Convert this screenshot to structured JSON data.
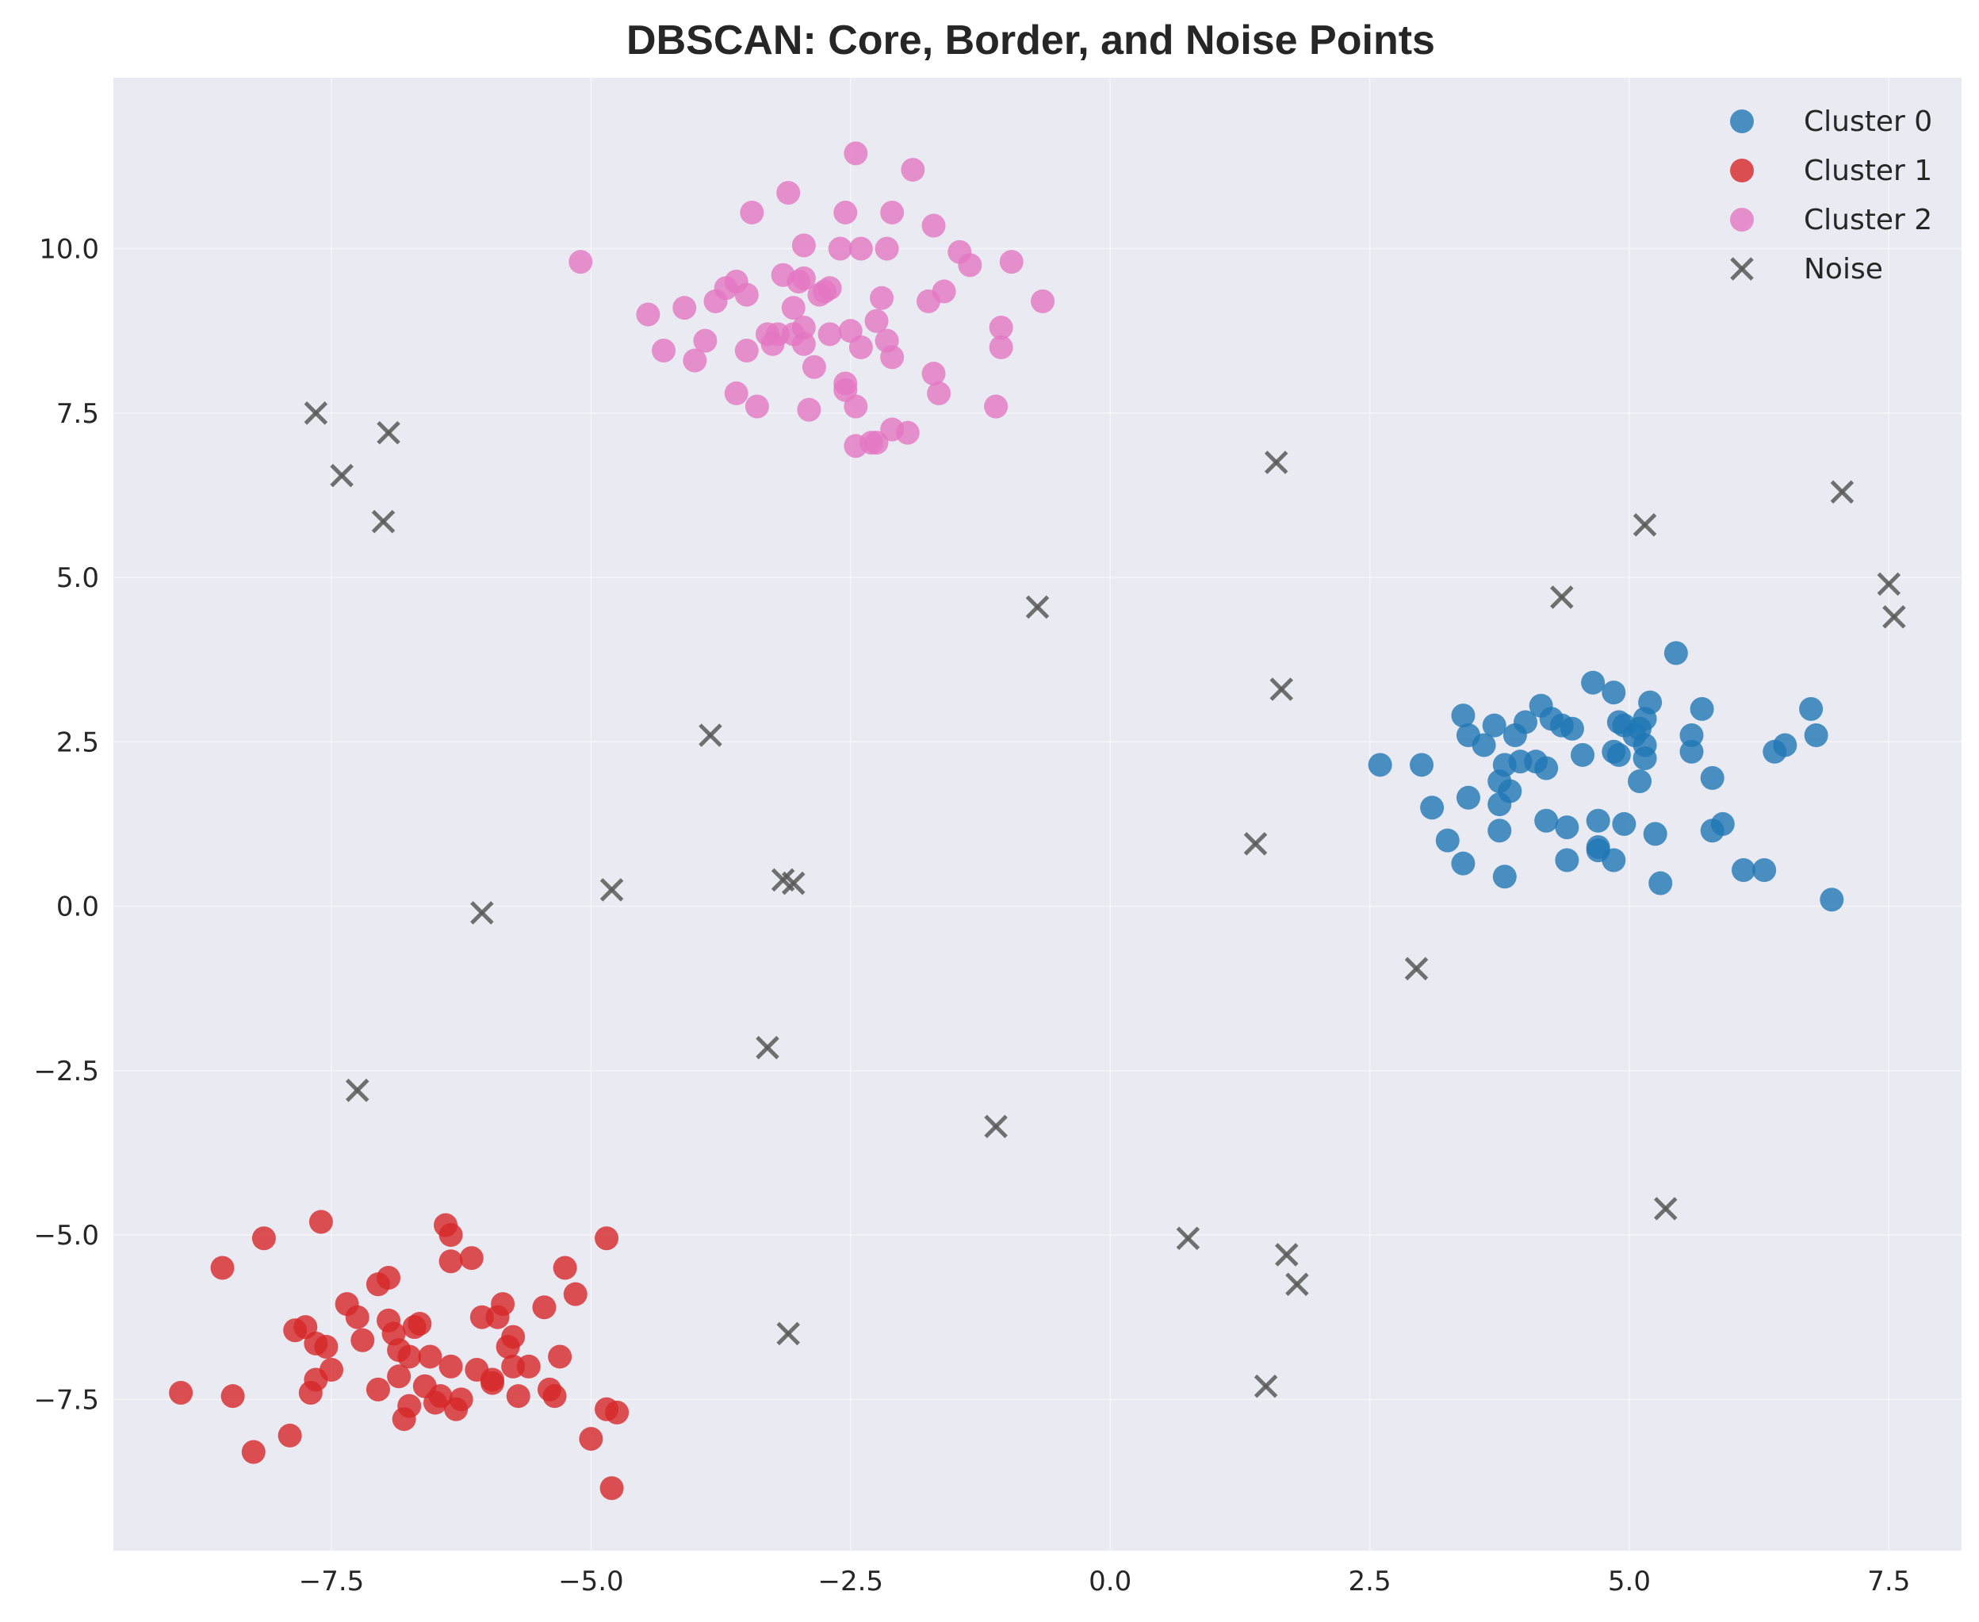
{
  "chart_data": {
    "type": "scatter",
    "title": "DBSCAN: Core, Border, and Noise Points",
    "xlabel": "",
    "ylabel": "",
    "xlim": [
      -9.6,
      8.2
    ],
    "ylim": [
      -9.8,
      12.6
    ],
    "xticks": [
      -7.5,
      -5.0,
      -2.5,
      0.0,
      2.5,
      5.0,
      7.5
    ],
    "xtick_labels": [
      "−7.5",
      "−5.0",
      "−2.5",
      "0.0",
      "2.5",
      "5.0",
      "7.5"
    ],
    "yticks": [
      -7.5,
      -5.0,
      -2.5,
      0.0,
      2.5,
      5.0,
      7.5,
      10.0
    ],
    "ytick_labels": [
      "−7.5",
      "−5.0",
      "−2.5",
      "0.0",
      "2.5",
      "5.0",
      "7.5",
      "10.0"
    ],
    "grid": true,
    "legend_position": "top-right",
    "background_color": "#eaeaf2",
    "series": [
      {
        "name": "Cluster 0",
        "marker": "circle",
        "color": "#1f77b4",
        "points": [
          [
            2.6,
            2.15
          ],
          [
            3.0,
            2.15
          ],
          [
            3.1,
            1.5
          ],
          [
            3.25,
            1.0
          ],
          [
            3.4,
            2.9
          ],
          [
            3.45,
            2.6
          ],
          [
            3.45,
            1.65
          ],
          [
            3.4,
            0.65
          ],
          [
            3.6,
            2.45
          ],
          [
            3.7,
            2.75
          ],
          [
            3.75,
            1.9
          ],
          [
            3.75,
            1.55
          ],
          [
            3.75,
            1.15
          ],
          [
            3.8,
            0.45
          ],
          [
            3.8,
            2.15
          ],
          [
            3.85,
            1.75
          ],
          [
            3.9,
            2.6
          ],
          [
            3.95,
            2.2
          ],
          [
            4.0,
            2.8
          ],
          [
            4.1,
            2.2
          ],
          [
            4.15,
            3.05
          ],
          [
            4.2,
            2.1
          ],
          [
            4.2,
            1.3
          ],
          [
            4.25,
            2.85
          ],
          [
            4.35,
            2.75
          ],
          [
            4.4,
            1.2
          ],
          [
            4.4,
            0.7
          ],
          [
            4.45,
            2.7
          ],
          [
            4.55,
            2.3
          ],
          [
            4.65,
            3.4
          ],
          [
            4.7,
            1.3
          ],
          [
            4.7,
            0.9
          ],
          [
            4.7,
            0.85
          ],
          [
            4.85,
            3.25
          ],
          [
            4.85,
            2.35
          ],
          [
            4.85,
            0.7
          ],
          [
            4.9,
            2.8
          ],
          [
            4.9,
            2.3
          ],
          [
            4.95,
            2.75
          ],
          [
            4.95,
            1.25
          ],
          [
            5.05,
            2.6
          ],
          [
            5.1,
            2.7
          ],
          [
            5.1,
            1.9
          ],
          [
            5.15,
            2.85
          ],
          [
            5.15,
            2.45
          ],
          [
            5.15,
            2.25
          ],
          [
            5.2,
            3.1
          ],
          [
            5.25,
            1.1
          ],
          [
            5.3,
            0.35
          ],
          [
            5.45,
            3.85
          ],
          [
            5.6,
            2.6
          ],
          [
            5.6,
            2.35
          ],
          [
            5.7,
            3.0
          ],
          [
            5.8,
            1.95
          ],
          [
            5.8,
            1.15
          ],
          [
            5.9,
            1.25
          ],
          [
            6.1,
            0.55
          ],
          [
            6.3,
            0.55
          ],
          [
            6.4,
            2.35
          ],
          [
            6.5,
            2.45
          ],
          [
            6.75,
            3.0
          ],
          [
            6.8,
            2.6
          ],
          [
            6.95,
            0.1
          ]
        ]
      },
      {
        "name": "Cluster 1",
        "marker": "circle",
        "color": "#d62728",
        "points": [
          [
            -8.95,
            -7.4
          ],
          [
            -8.55,
            -5.5
          ],
          [
            -8.45,
            -7.45
          ],
          [
            -8.25,
            -8.3
          ],
          [
            -8.15,
            -5.05
          ],
          [
            -7.9,
            -8.05
          ],
          [
            -7.85,
            -6.45
          ],
          [
            -7.75,
            -6.4
          ],
          [
            -7.7,
            -7.4
          ],
          [
            -7.65,
            -7.2
          ],
          [
            -7.65,
            -6.65
          ],
          [
            -7.6,
            -4.8
          ],
          [
            -7.55,
            -6.7
          ],
          [
            -7.5,
            -7.05
          ],
          [
            -7.35,
            -6.05
          ],
          [
            -7.25,
            -6.25
          ],
          [
            -7.2,
            -6.6
          ],
          [
            -7.05,
            -5.75
          ],
          [
            -7.05,
            -7.35
          ],
          [
            -6.95,
            -5.65
          ],
          [
            -6.95,
            -6.3
          ],
          [
            -6.9,
            -6.5
          ],
          [
            -6.85,
            -7.15
          ],
          [
            -6.85,
            -6.75
          ],
          [
            -6.8,
            -7.8
          ],
          [
            -6.75,
            -6.85
          ],
          [
            -6.75,
            -7.6
          ],
          [
            -6.7,
            -6.4
          ],
          [
            -6.65,
            -6.35
          ],
          [
            -6.6,
            -7.3
          ],
          [
            -6.55,
            -6.85
          ],
          [
            -6.5,
            -7.55
          ],
          [
            -6.45,
            -7.45
          ],
          [
            -6.4,
            -4.85
          ],
          [
            -6.35,
            -5.0
          ],
          [
            -6.35,
            -5.4
          ],
          [
            -6.35,
            -7.0
          ],
          [
            -6.3,
            -7.65
          ],
          [
            -6.25,
            -7.5
          ],
          [
            -6.15,
            -5.35
          ],
          [
            -6.1,
            -7.05
          ],
          [
            -6.05,
            -6.25
          ],
          [
            -5.95,
            -7.2
          ],
          [
            -5.95,
            -7.25
          ],
          [
            -5.9,
            -6.25
          ],
          [
            -5.85,
            -6.05
          ],
          [
            -5.8,
            -6.7
          ],
          [
            -5.75,
            -6.55
          ],
          [
            -5.75,
            -7.0
          ],
          [
            -5.7,
            -7.45
          ],
          [
            -5.6,
            -7.0
          ],
          [
            -5.45,
            -6.1
          ],
          [
            -5.4,
            -7.35
          ],
          [
            -5.35,
            -7.45
          ],
          [
            -5.3,
            -6.85
          ],
          [
            -5.25,
            -5.5
          ],
          [
            -5.15,
            -5.9
          ],
          [
            -5.0,
            -8.1
          ],
          [
            -4.85,
            -5.05
          ],
          [
            -4.85,
            -7.65
          ],
          [
            -4.8,
            -8.85
          ],
          [
            -4.75,
            -7.7
          ]
        ]
      },
      {
        "name": "Cluster 2",
        "marker": "circle",
        "color": "#e377c2",
        "points": [
          [
            -5.1,
            9.8
          ],
          [
            -4.45,
            9.0
          ],
          [
            -4.3,
            8.45
          ],
          [
            -4.1,
            9.1
          ],
          [
            -4.0,
            8.3
          ],
          [
            -3.9,
            8.6
          ],
          [
            -3.8,
            9.2
          ],
          [
            -3.7,
            9.4
          ],
          [
            -3.6,
            9.5
          ],
          [
            -3.6,
            7.8
          ],
          [
            -3.5,
            8.45
          ],
          [
            -3.5,
            9.3
          ],
          [
            -3.45,
            10.55
          ],
          [
            -3.4,
            7.6
          ],
          [
            -3.3,
            8.7
          ],
          [
            -3.25,
            8.55
          ],
          [
            -3.2,
            8.7
          ],
          [
            -3.15,
            9.6
          ],
          [
            -3.1,
            10.85
          ],
          [
            -3.05,
            8.7
          ],
          [
            -3.05,
            9.1
          ],
          [
            -3.0,
            9.5
          ],
          [
            -2.95,
            9.55
          ],
          [
            -2.95,
            8.8
          ],
          [
            -2.95,
            8.55
          ],
          [
            -2.95,
            10.05
          ],
          [
            -2.9,
            7.55
          ],
          [
            -2.85,
            8.2
          ],
          [
            -2.8,
            9.3
          ],
          [
            -2.75,
            9.35
          ],
          [
            -2.7,
            9.4
          ],
          [
            -2.7,
            8.7
          ],
          [
            -2.6,
            10.0
          ],
          [
            -2.55,
            10.55
          ],
          [
            -2.55,
            7.95
          ],
          [
            -2.55,
            7.85
          ],
          [
            -2.5,
            8.75
          ],
          [
            -2.45,
            11.45
          ],
          [
            -2.45,
            7.6
          ],
          [
            -2.45,
            7.0
          ],
          [
            -2.4,
            10.0
          ],
          [
            -2.4,
            8.5
          ],
          [
            -2.3,
            7.05
          ],
          [
            -2.25,
            7.05
          ],
          [
            -2.25,
            8.9
          ],
          [
            -2.2,
            9.25
          ],
          [
            -2.15,
            10.0
          ],
          [
            -2.15,
            8.6
          ],
          [
            -2.1,
            8.35
          ],
          [
            -2.1,
            10.55
          ],
          [
            -2.1,
            7.25
          ],
          [
            -1.95,
            7.2
          ],
          [
            -1.9,
            11.2
          ],
          [
            -1.75,
            9.2
          ],
          [
            -1.7,
            8.1
          ],
          [
            -1.7,
            10.35
          ],
          [
            -1.65,
            7.8
          ],
          [
            -1.6,
            9.35
          ],
          [
            -1.45,
            9.95
          ],
          [
            -1.35,
            9.75
          ],
          [
            -1.1,
            7.6
          ],
          [
            -1.05,
            8.8
          ],
          [
            -1.05,
            8.5
          ],
          [
            -0.95,
            9.8
          ],
          [
            -0.65,
            9.2
          ]
        ]
      },
      {
        "name": "Noise",
        "marker": "x",
        "color": "#595959",
        "points": [
          [
            -7.65,
            7.5
          ],
          [
            -7.4,
            6.55
          ],
          [
            -7.0,
            5.85
          ],
          [
            -6.95,
            7.2
          ],
          [
            -7.25,
            -2.8
          ],
          [
            -6.05,
            -0.1
          ],
          [
            -4.8,
            0.25
          ],
          [
            -3.85,
            2.6
          ],
          [
            -3.3,
            -2.15
          ],
          [
            -3.15,
            0.4
          ],
          [
            -3.05,
            0.35
          ],
          [
            -3.1,
            -6.5
          ],
          [
            -1.1,
            -3.35
          ],
          [
            -0.7,
            4.55
          ],
          [
            0.75,
            -5.05
          ],
          [
            1.4,
            0.95
          ],
          [
            1.5,
            -7.3
          ],
          [
            1.6,
            6.75
          ],
          [
            1.65,
            3.3
          ],
          [
            1.7,
            -5.3
          ],
          [
            1.8,
            -5.75
          ],
          [
            2.95,
            -0.95
          ],
          [
            4.35,
            4.7
          ],
          [
            5.15,
            5.8
          ],
          [
            5.35,
            -4.6
          ],
          [
            7.05,
            6.3
          ],
          [
            7.5,
            4.9
          ],
          [
            7.55,
            4.4
          ]
        ]
      }
    ]
  }
}
